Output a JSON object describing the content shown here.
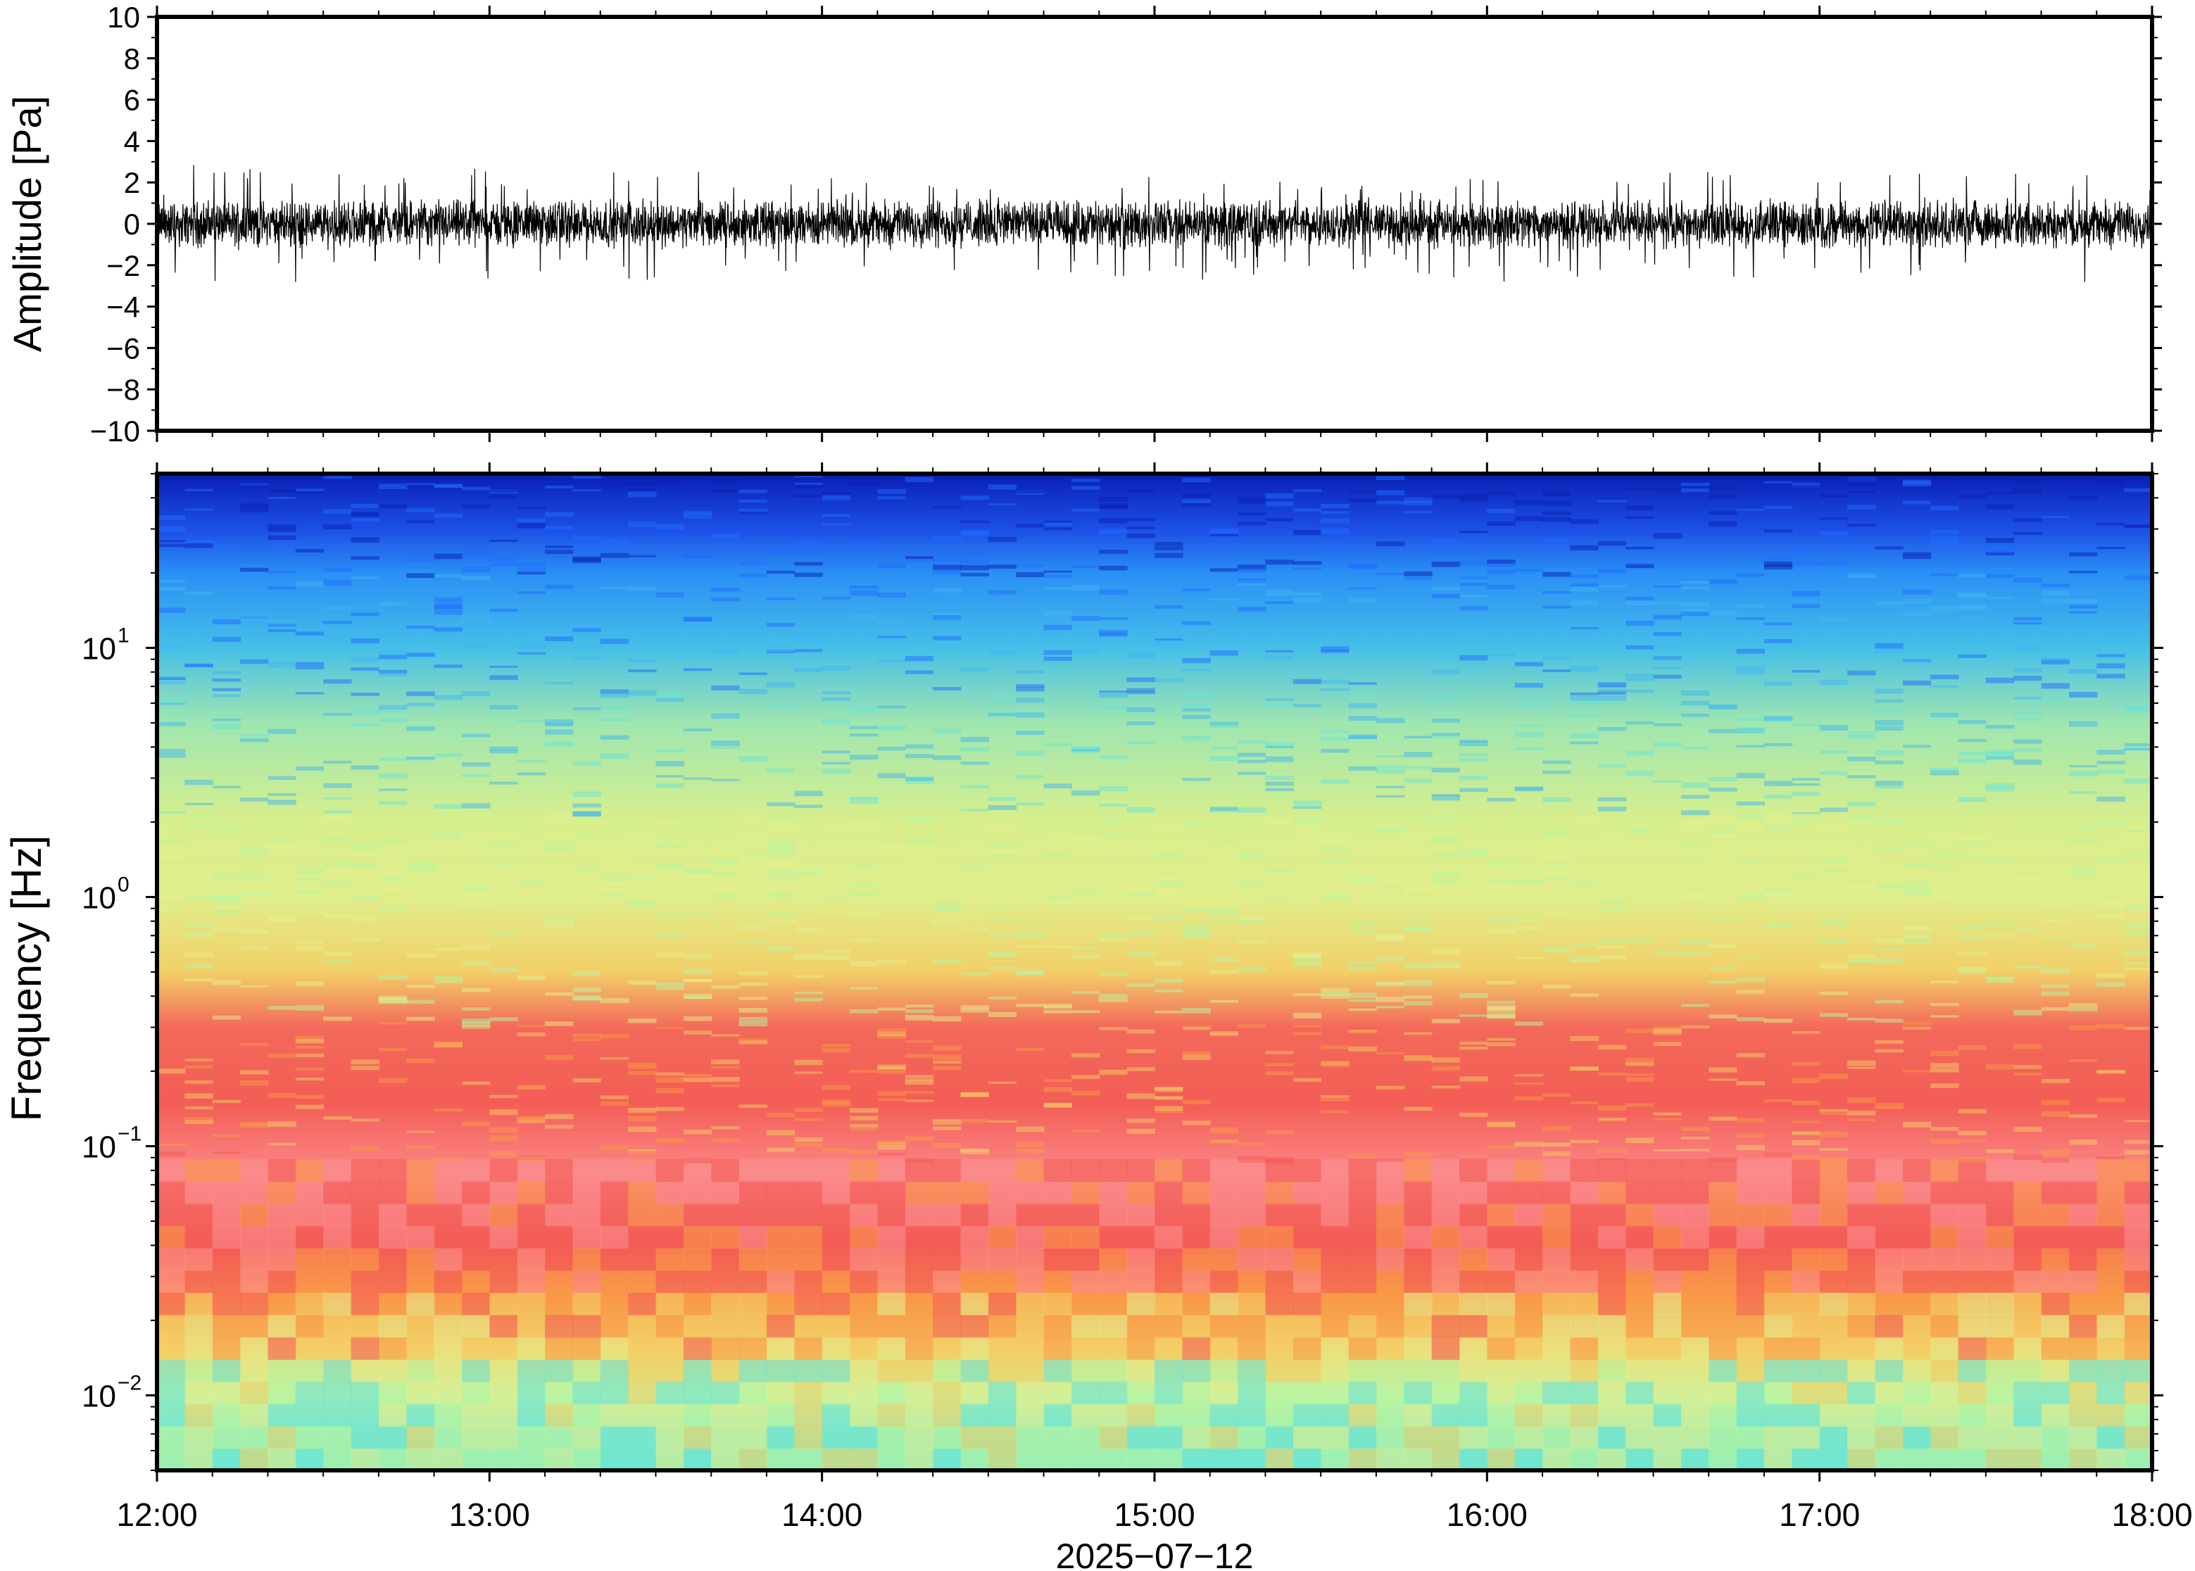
{
  "chart_data": [
    {
      "type": "line",
      "panel": "waveform",
      "ylabel": "Amplitude [Pa]",
      "ylim": [
        -10,
        10
      ],
      "yticks": [
        -10,
        -8,
        -6,
        -4,
        -2,
        0,
        2,
        4,
        6,
        8,
        10
      ],
      "ytick_labels": [
        "−10",
        "−8",
        "−6",
        "−4",
        "−2",
        "0",
        "2",
        "4",
        "6",
        "8",
        "10"
      ],
      "xlim": [
        "12:00",
        "18:00"
      ],
      "grid": false,
      "series": [
        {
          "envelope_interval_minutes": 10,
          "x": [
            "12:00",
            "12:10",
            "12:20",
            "12:30",
            "12:40",
            "12:50",
            "13:00",
            "13:10",
            "13:20",
            "13:30",
            "13:40",
            "13:50",
            "14:00",
            "14:10",
            "14:20",
            "14:30",
            "14:40",
            "14:50",
            "15:00",
            "15:10",
            "15:20",
            "15:30",
            "15:40",
            "15:50",
            "16:00",
            "16:10",
            "16:20",
            "16:30",
            "16:40",
            "16:50",
            "17:00",
            "17:10",
            "17:20",
            "17:30",
            "17:40",
            "17:50",
            "18:00"
          ],
          "max": [
            2.0,
            3.3,
            2.5,
            2.6,
            2.3,
            3.2,
            2.5,
            2.5,
            2.4,
            3.1,
            2.4,
            2.2,
            2.3,
            2.4,
            2.3,
            2.1,
            2.2,
            2.0,
            2.5,
            2.1,
            2.6,
            2.4,
            2.1,
            2.3,
            2.4,
            2.6,
            2.2,
            2.3,
            3.1,
            2.6,
            2.5,
            2.6,
            2.5,
            2.7,
            2.9,
            2.8,
            2.0
          ],
          "min": [
            -2.4,
            -4.6,
            -3.1,
            -2.6,
            -2.4,
            -2.7,
            -3.0,
            -2.6,
            -2.6,
            -3.8,
            -2.6,
            -2.7,
            -2.5,
            -2.3,
            -2.8,
            -2.3,
            -2.5,
            -2.8,
            -2.4,
            -2.8,
            -2.4,
            -3.1,
            -2.3,
            -2.6,
            -3.0,
            -2.7,
            -2.6,
            -2.5,
            -2.6,
            -2.6,
            -2.5,
            -2.6,
            -2.6,
            -2.4,
            -2.5,
            -3.4,
            -2.3
          ]
        }
      ]
    },
    {
      "type": "heatmap",
      "panel": "spectrogram",
      "ylabel": "Frequency [Hz]",
      "yscale": "log",
      "ylim": [
        0.005,
        50
      ],
      "ytick_labels": [
        {
          "value": 0.01,
          "base": "10",
          "exp": "−2"
        },
        {
          "value": 0.1,
          "base": "10",
          "exp": "−1"
        },
        {
          "value": 1,
          "base": "10",
          "exp": "0"
        },
        {
          "value": 10,
          "base": "10",
          "exp": "1"
        }
      ],
      "xlim": [
        "12:00",
        "18:00"
      ],
      "xlabel": "2025−07−12",
      "xtick_labels": [
        "12:00",
        "13:00",
        "14:00",
        "15:00",
        "16:00",
        "17:00",
        "18:00"
      ],
      "colormap": [
        "#0a1fb4",
        "#1f6cff",
        "#3fb6f2",
        "#68e3d8",
        "#b8f5a2",
        "#e3ef8e",
        "#f4d066",
        "#f99a48",
        "#f35d55",
        "#fb8f90"
      ],
      "frequency_profile": {
        "frequency_hz": [
          50,
          30,
          20,
          10,
          5,
          2,
          1,
          0.5,
          0.3,
          0.15,
          0.08,
          0.04,
          0.025,
          0.015,
          0.01,
          0.007,
          0.005
        ],
        "color": [
          "#0a1fb4",
          "#1c4fe6",
          "#2a8ff5",
          "#45bfe8",
          "#9fe6b0",
          "#d8ef8c",
          "#e0ee8a",
          "#f2cf68",
          "#f3695a",
          "#f35d55",
          "#fb8586",
          "#f35a55",
          "#f99648",
          "#f2cf68",
          "#c0f2a0",
          "#8ee8b8",
          "#7ae8c4"
        ]
      }
    }
  ],
  "colors": {
    "trace": "#000000",
    "frame": "#000000",
    "background": "#ffffff"
  }
}
